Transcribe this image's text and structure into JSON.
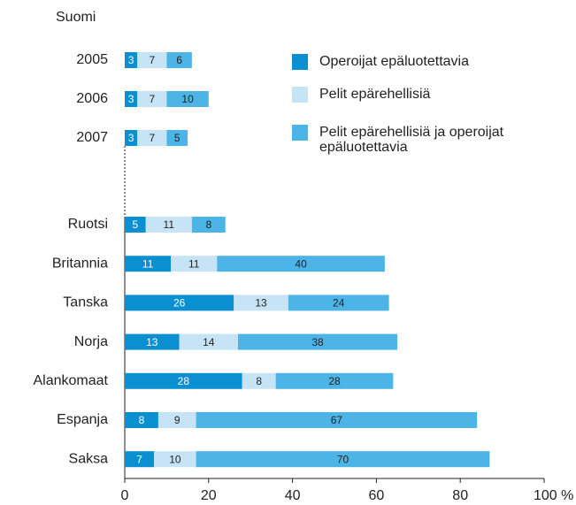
{
  "chart_data": {
    "type": "stacked-barh",
    "group_label": "Suomi",
    "categories": [
      "2005",
      "2006",
      "2007",
      null,
      "Ruotsi",
      "Britannia",
      "Tanska",
      "Norja",
      "Alankomaat",
      "Espanja",
      "Saksa"
    ],
    "series": [
      {
        "name": "Operoijat epäluotettavia",
        "color": "#0a8fd1",
        "values": [
          3,
          3,
          3,
          null,
          5,
          11,
          26,
          13,
          28,
          8,
          7
        ]
      },
      {
        "name": "Pelit epärehellisiä",
        "color": "#c7e4f6",
        "values": [
          7,
          7,
          7,
          null,
          11,
          11,
          13,
          14,
          8,
          9,
          10
        ]
      },
      {
        "name": "Pelit epärehellisiä ja operoijat epäluotettavia",
        "color": "#4db4e7",
        "values": [
          6,
          10,
          5,
          null,
          8,
          40,
          24,
          38,
          28,
          67,
          70
        ]
      }
    ],
    "xlim": [
      0,
      100
    ],
    "xticks": [
      0,
      20,
      40,
      60,
      80,
      {
        "value": 100,
        "label": "100 %"
      }
    ]
  }
}
